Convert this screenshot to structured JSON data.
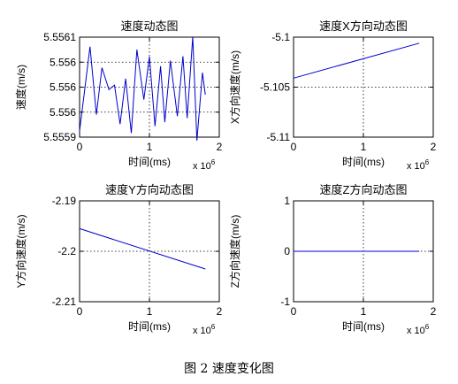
{
  "figure_caption": "图 2  速度变化图",
  "chart_data": [
    {
      "type": "line",
      "title": "速度动态图",
      "xlabel": "时间(ms)",
      "ylabel": "速度(m/s)",
      "x_multiplier_label": "x 10",
      "x_exponent_label": "6",
      "xlim": [
        0,
        2
      ],
      "ylim": [
        5.5559,
        5.5561
      ],
      "xticks": [
        0,
        1,
        2
      ],
      "xtick_labels": [
        "0",
        "1",
        "2"
      ],
      "yticks": [
        5.5559,
        5.55595,
        5.556,
        5.55605,
        5.5561
      ],
      "ytick_labels": [
        "5.5559",
        "5.556",
        "5.556",
        "5.556",
        "5.5561"
      ],
      "grid": true,
      "line_color": "#0000cc",
      "series": [
        {
          "x": [
            0.0,
            0.15,
            0.24,
            0.32,
            0.42,
            0.5,
            0.58,
            0.66,
            0.74,
            0.82,
            0.92,
            1.0,
            1.08,
            1.16,
            1.22,
            1.3,
            1.4,
            1.48,
            1.54,
            1.62,
            1.68,
            1.76,
            1.8
          ],
          "y": [
            5.555912,
            5.556081,
            5.555945,
            5.556039,
            5.555995,
            5.556004,
            5.555926,
            5.556017,
            5.555908,
            5.556075,
            5.555975,
            5.556061,
            5.555922,
            5.556042,
            5.55593,
            5.556053,
            5.555942,
            5.556062,
            5.555938,
            5.556101,
            5.555893,
            5.556029,
            5.555985
          ]
        }
      ]
    },
    {
      "type": "line",
      "title": "速度X方向动态图",
      "xlabel": "时间(ms)",
      "ylabel": "X方向速度(m/s)",
      "x_multiplier_label": "x 10",
      "x_exponent_label": "6",
      "xlim": [
        0,
        2
      ],
      "ylim": [
        -5.11,
        -5.1
      ],
      "xticks": [
        0,
        1,
        2
      ],
      "xtick_labels": [
        "0",
        "1",
        "2"
      ],
      "yticks": [
        -5.11,
        -5.105,
        -5.1
      ],
      "ytick_labels": [
        "-5.11",
        "-5.105",
        "-5.1"
      ],
      "grid": true,
      "line_color": "#0000cc",
      "series": [
        {
          "x": [
            0,
            1.8
          ],
          "y": [
            -5.1041,
            -5.1006
          ]
        }
      ]
    },
    {
      "type": "line",
      "title": "速度Y方向动态图",
      "xlabel": "时间(ms)",
      "ylabel": "Y方向速度(m/s)",
      "x_multiplier_label": "x 10",
      "x_exponent_label": "6",
      "xlim": [
        0,
        2
      ],
      "ylim": [
        -2.21,
        -2.19
      ],
      "xticks": [
        0,
        1,
        2
      ],
      "xtick_labels": [
        "0",
        "1",
        "2"
      ],
      "yticks": [
        -2.21,
        -2.2,
        -2.19
      ],
      "ytick_labels": [
        "-2.21",
        "-2.2",
        "-2.19"
      ],
      "grid": true,
      "line_color": "#0000cc",
      "series": [
        {
          "x": [
            0,
            1.8
          ],
          "y": [
            -2.1955,
            -2.2035
          ]
        }
      ]
    },
    {
      "type": "line",
      "title": "速度Z方向动态图",
      "xlabel": "时间(ms)",
      "ylabel": "Z方向速度(m/s)",
      "x_multiplier_label": "x 10",
      "x_exponent_label": "6",
      "xlim": [
        0,
        2
      ],
      "ylim": [
        -1,
        1
      ],
      "xticks": [
        0,
        1,
        2
      ],
      "xtick_labels": [
        "0",
        "1",
        "2"
      ],
      "yticks": [
        -1,
        0,
        1
      ],
      "ytick_labels": [
        "-1",
        "0",
        "1"
      ],
      "grid": true,
      "line_color": "#0000cc",
      "series": [
        {
          "x": [
            0,
            1.8
          ],
          "y": [
            0,
            0
          ]
        }
      ]
    }
  ]
}
